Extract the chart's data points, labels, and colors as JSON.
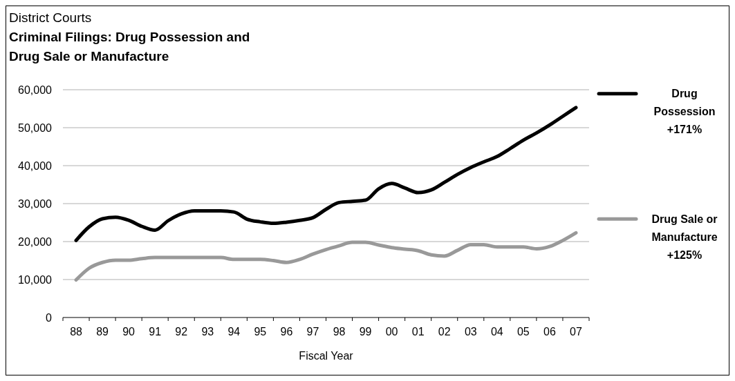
{
  "chart_data": {
    "type": "line",
    "title": "District Courts",
    "subtitle": "Criminal Filings: Drug Possession and Drug Sale or Manufacture",
    "xlabel": "Fiscal Year",
    "x": [
      1988,
      1988.5,
      1989,
      1989.5,
      1990,
      1990.5,
      1991,
      1991.5,
      1992,
      1992.5,
      1993,
      1993.5,
      1994,
      1994.5,
      1995,
      1995.5,
      1996,
      1996.5,
      1997,
      1997.5,
      1998,
      1998.5,
      1999,
      1999.5,
      2000,
      2000.5,
      2001,
      2001.5,
      2002,
      2002.5,
      2003,
      2003.5,
      2004,
      2004.5,
      2005,
      2005.5,
      2006,
      2006.5,
      2007
    ],
    "series": [
      {
        "name": "Drug Possession",
        "color": "#000000",
        "values": [
          20300,
          23900,
          26000,
          26400,
          25600,
          24000,
          23000,
          25500,
          27300,
          28100,
          28100,
          28100,
          27800,
          25900,
          25200,
          24800,
          25100,
          25600,
          26300,
          28500,
          30300,
          30600,
          30900,
          33900,
          35300,
          34100,
          32900,
          33600,
          35600,
          37700,
          39500,
          41000,
          42400,
          44500,
          46700,
          48600,
          50700,
          53000,
          55300
        ]
      },
      {
        "name": "Drug Sale or Manufacture",
        "color": "#999999",
        "values": [
          9900,
          13000,
          14500,
          15100,
          15100,
          15500,
          15800,
          15800,
          15800,
          15800,
          15800,
          15800,
          15300,
          15300,
          15300,
          15000,
          14500,
          15300,
          16700,
          17900,
          18900,
          19800,
          19800,
          19100,
          18400,
          18000,
          17600,
          16500,
          16200,
          17700,
          19200,
          19200,
          18600,
          18600,
          18600,
          18100,
          18700,
          20300,
          22300
        ]
      }
    ],
    "annotations": [
      "+171%",
      "+125%"
    ],
    "xlim": [
      1987.5,
      2007.5
    ],
    "xticks": [
      {
        "value": 1987.5,
        "label": null
      },
      {
        "value": 1988,
        "label": "88"
      },
      {
        "value": 1988.5,
        "label": null
      },
      {
        "value": 1989,
        "label": "89"
      },
      {
        "value": 1989.5,
        "label": null
      },
      {
        "value": 1990,
        "label": "90"
      },
      {
        "value": 1990.5,
        "label": null
      },
      {
        "value": 1991,
        "label": "91"
      },
      {
        "value": 1991.5,
        "label": null
      },
      {
        "value": 1992,
        "label": "92"
      },
      {
        "value": 1992.5,
        "label": null
      },
      {
        "value": 1993,
        "label": "93"
      },
      {
        "value": 1993.5,
        "label": null
      },
      {
        "value": 1994,
        "label": "94"
      },
      {
        "value": 1994.5,
        "label": null
      },
      {
        "value": 1995,
        "label": "95"
      },
      {
        "value": 1995.5,
        "label": null
      },
      {
        "value": 1996,
        "label": "96"
      },
      {
        "value": 1996.5,
        "label": null
      },
      {
        "value": 1997,
        "label": "97"
      },
      {
        "value": 1997.5,
        "label": null
      },
      {
        "value": 1998,
        "label": "98"
      },
      {
        "value": 1998.5,
        "label": null
      },
      {
        "value": 1999,
        "label": "99"
      },
      {
        "value": 1999.5,
        "label": null
      },
      {
        "value": 2000,
        "label": "00"
      },
      {
        "value": 2000.5,
        "label": null
      },
      {
        "value": 2001,
        "label": "01"
      },
      {
        "value": 2001.5,
        "label": null
      },
      {
        "value": 2002,
        "label": "02"
      },
      {
        "value": 2002.5,
        "label": null
      },
      {
        "value": 2003,
        "label": "03"
      },
      {
        "value": 2003.5,
        "label": null
      },
      {
        "value": 2004,
        "label": "04"
      },
      {
        "value": 2004.5,
        "label": null
      },
      {
        "value": 2005,
        "label": "05"
      },
      {
        "value": 2005.5,
        "label": null
      },
      {
        "value": 2006,
        "label": "06"
      },
      {
        "value": 2006.5,
        "label": null
      },
      {
        "value": 2007,
        "label": "07"
      },
      {
        "value": 2007.5,
        "label": null
      }
    ],
    "ylim": [
      0,
      60000
    ],
    "yticks": [
      {
        "value": 0,
        "label": "0"
      },
      {
        "value": 10000,
        "label": "10,000"
      },
      {
        "value": 20000,
        "label": "20,000"
      },
      {
        "value": 30000,
        "label": "30,000"
      },
      {
        "value": 40000,
        "label": "40,000"
      },
      {
        "value": 50000,
        "label": "50,000"
      },
      {
        "value": 60000,
        "label": "60,000"
      }
    ],
    "grid": "y",
    "legend": "right",
    "line_style": "solid",
    "marker": "none"
  }
}
